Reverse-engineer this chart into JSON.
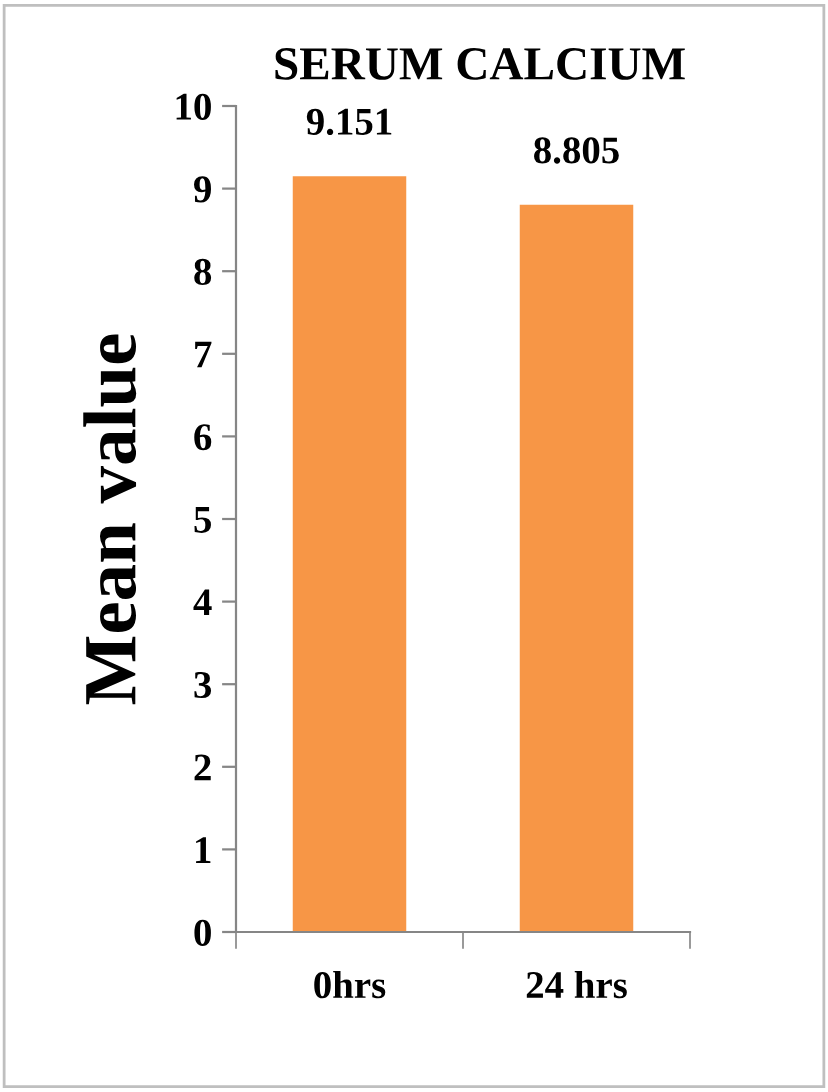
{
  "chart_data": {
    "type": "bar",
    "title": "SERUM CALCIUM",
    "ylabel": "Mean value",
    "categories": [
      "0hrs",
      "24 hrs"
    ],
    "values": [
      9.151,
      8.805
    ],
    "color": "#f79646",
    "ylim": [
      0,
      10
    ],
    "yticks": [
      0,
      1,
      2,
      3,
      4,
      5,
      6,
      7,
      8,
      9,
      10
    ],
    "grid": false,
    "data_labels": true
  }
}
